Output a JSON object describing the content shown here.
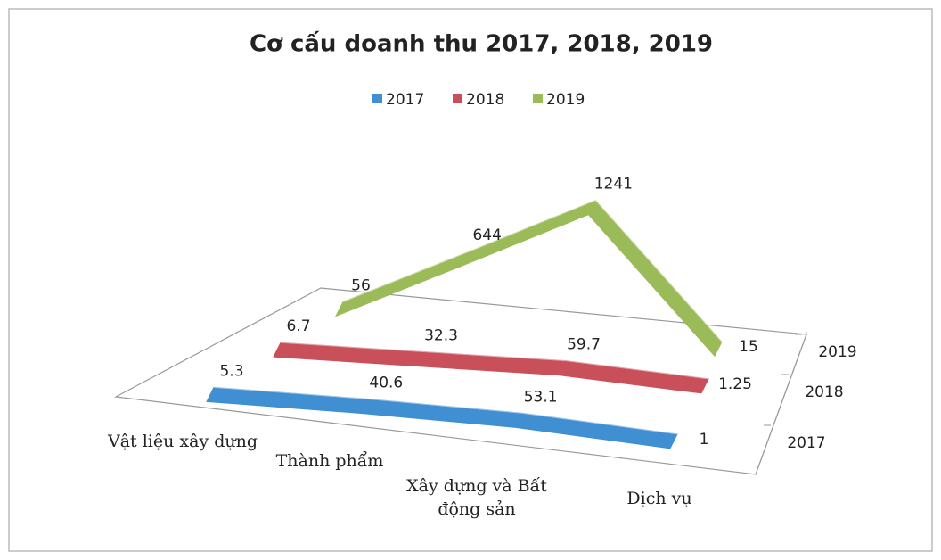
{
  "chart_data": {
    "type": "line3d",
    "title": "Cơ cấu doanh thu 2017, 2018, 2019",
    "categories": [
      "Vật liệu xây dựng",
      "Thành phẩm",
      "Xây dựng và Bất động sản",
      "Dịch vụ"
    ],
    "series": [
      {
        "name": "2017",
        "color": "#3f8fd2",
        "values": [
          5.3,
          40.6,
          53.1,
          1
        ]
      },
      {
        "name": "2018",
        "color": "#c9505a",
        "values": [
          6.7,
          32.3,
          59.7,
          1.25
        ]
      },
      {
        "name": "2019",
        "color": "#9bbb59",
        "values": [
          56,
          644,
          1241,
          15
        ]
      }
    ],
    "legend": "top"
  }
}
